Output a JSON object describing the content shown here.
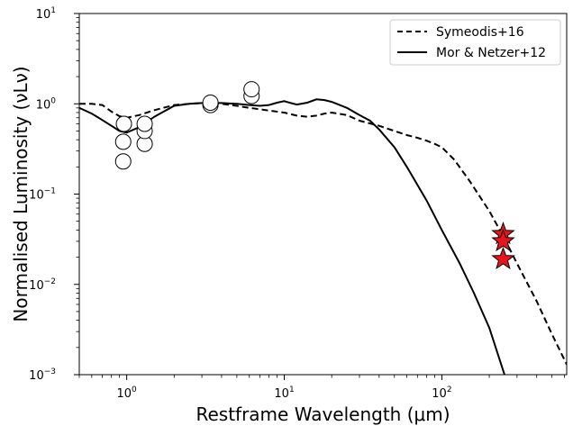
{
  "chart_data": {
    "type": "scatter",
    "title": "",
    "xlabel": "Restframe Wavelength (μm)",
    "ylabel": "Normalised Luminosity (νLν)",
    "xscale": "log",
    "yscale": "log",
    "xlim": [
      0.5,
      620
    ],
    "ylim": [
      0.001,
      10
    ],
    "legend_placement": "top-right",
    "x_ticks": [
      {
        "value": 1,
        "base": "10",
        "exp": "0"
      },
      {
        "value": 10,
        "base": "10",
        "exp": "1"
      },
      {
        "value": 100,
        "base": "10",
        "exp": "2"
      }
    ],
    "y_ticks": [
      {
        "value": 10,
        "base": "10",
        "exp": "1"
      },
      {
        "value": 1,
        "base": "10",
        "exp": "0"
      },
      {
        "value": 0.1,
        "base": "10",
        "exp": "−1"
      },
      {
        "value": 0.01,
        "base": "10",
        "exp": "−2"
      },
      {
        "value": 0.001,
        "base": "10",
        "exp": "−3"
      }
    ],
    "series": [
      {
        "name": "Symeodis+16",
        "style": "dashed",
        "x": [
          0.5,
          0.6,
          0.7,
          0.8,
          0.9,
          1.0,
          1.2,
          1.5,
          2.0,
          2.5,
          3.0,
          3.5,
          4.0,
          5.0,
          6.0,
          7.0,
          8.0,
          10.0,
          12.0,
          14.0,
          16.0,
          18.0,
          20.0,
          25.0,
          30.0,
          40.0,
          50.0,
          60.0,
          70.0,
          80.0,
          90.0,
          100.0,
          120.0,
          150.0,
          200.0,
          250.0,
          300.0,
          400.0,
          500.0,
          620.0
        ],
        "y": [
          1.0,
          1.0,
          0.97,
          0.82,
          0.73,
          0.7,
          0.75,
          0.85,
          0.97,
          1.0,
          1.02,
          1.02,
          1.0,
          0.95,
          0.9,
          0.87,
          0.84,
          0.8,
          0.74,
          0.72,
          0.74,
          0.78,
          0.8,
          0.75,
          0.65,
          0.57,
          0.5,
          0.45,
          0.42,
          0.39,
          0.36,
          0.33,
          0.24,
          0.14,
          0.065,
          0.032,
          0.017,
          0.0065,
          0.0028,
          0.0013
        ]
      },
      {
        "name": "Mor & Netzer+12",
        "style": "solid",
        "x": [
          0.5,
          0.6,
          0.7,
          0.8,
          0.9,
          1.0,
          1.2,
          1.5,
          2.0,
          2.5,
          3.0,
          3.5,
          4.0,
          5.0,
          6.0,
          7.0,
          8.0,
          9.0,
          10.0,
          11.0,
          12.0,
          14.0,
          16.0,
          18.0,
          20.0,
          25.0,
          30.0,
          35.0,
          40.0,
          50.0,
          60.0,
          80.0,
          100.0,
          130.0,
          160.0,
          200.0,
          250.0
        ],
        "y": [
          0.9,
          0.78,
          0.66,
          0.57,
          0.5,
          0.48,
          0.55,
          0.72,
          0.95,
          1.0,
          1.02,
          1.02,
          1.02,
          1.0,
          0.97,
          0.95,
          0.97,
          1.03,
          1.07,
          1.02,
          0.98,
          1.03,
          1.12,
          1.1,
          1.05,
          0.9,
          0.75,
          0.65,
          0.52,
          0.33,
          0.2,
          0.085,
          0.04,
          0.017,
          0.008,
          0.0033,
          0.001
        ]
      },
      {
        "name": "circles",
        "style": "markers-circle",
        "x": [
          0.95,
          0.95,
          0.96,
          1.3,
          1.3,
          1.3,
          3.4,
          3.4,
          6.2,
          6.2
        ],
        "y": [
          0.23,
          0.38,
          0.6,
          0.36,
          0.5,
          0.6,
          0.97,
          1.03,
          1.22,
          1.45
        ]
      },
      {
        "name": "stars",
        "style": "markers-star",
        "x": [
          245,
          245,
          245
        ],
        "y": [
          0.036,
          0.03,
          0.019
        ]
      }
    ],
    "colors": {
      "star_fill": "#e8141c",
      "line": "#000000",
      "circle_fill": "#ffffff"
    }
  }
}
